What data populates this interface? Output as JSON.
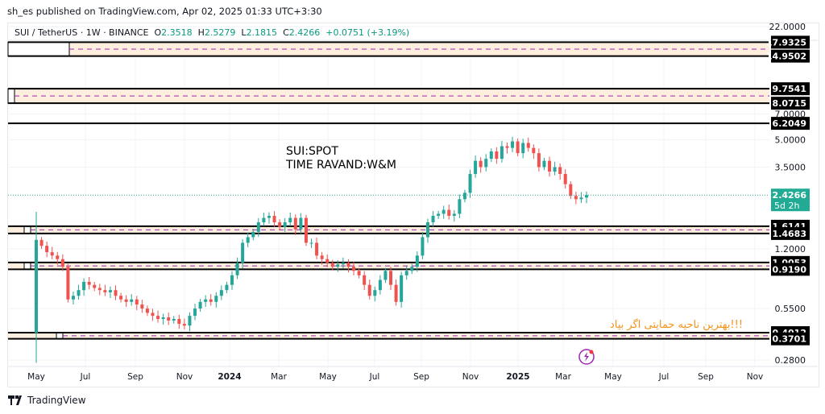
{
  "publisher_line": "sh_es published on TradingView.com, Apr 02, 2025 01:33 UTC+3:30",
  "legend": {
    "symbol": "SUI / TetherUS · 1W · BINANCE",
    "o_label": "O",
    "o": "2.3518",
    "h_label": "H",
    "h": "2.5279",
    "l_label": "L",
    "l": "2.1815",
    "c_label": "C",
    "c": "2.4266",
    "change": "+0.0751 (+3.19%)"
  },
  "colors": {
    "up": "#26a69a",
    "down": "#ef5350",
    "zone_fill": "#fdeedd",
    "zone_mid": "#9c27b0",
    "note": "#f7931a",
    "last_price": "#22ab94"
  },
  "annotations": {
    "line1": "SUI:SPOT",
    "line2": "TIME RAVAND:W&M",
    "persian": "!!!بهترین ناحیه حمایتی اگر بیاد"
  },
  "chart_data": {
    "type": "candlestick",
    "scale": "log",
    "ylim": [
      0.28,
      22
    ],
    "y_ticks": [
      "22.0000",
      "7.0000",
      "5.0000",
      "3.5000",
      "1.2000",
      "0.5500",
      "0.2800"
    ],
    "x_ticks": [
      "May",
      "Jul",
      "Sep",
      "Nov",
      "2024",
      "Mar",
      "May",
      "Jul",
      "Sep",
      "Nov",
      "2025",
      "Mar",
      "May",
      "Jul",
      "Sep",
      "Nov"
    ],
    "first_candle": {
      "o": 0.4,
      "h": 1.95,
      "l": 0.27,
      "c": 1.35
    },
    "closes": [
      1.25,
      1.15,
      1.1,
      1.05,
      0.95,
      0.62,
      0.65,
      0.7,
      0.78,
      0.75,
      0.72,
      0.7,
      0.68,
      0.7,
      0.65,
      0.62,
      0.6,
      0.62,
      0.58,
      0.55,
      0.52,
      0.5,
      0.48,
      0.49,
      0.47,
      0.48,
      0.45,
      0.44,
      0.5,
      0.55,
      0.6,
      0.62,
      0.6,
      0.65,
      0.7,
      0.75,
      0.85,
      1.0,
      1.3,
      1.4,
      1.5,
      1.7,
      1.8,
      1.85,
      1.7,
      1.6,
      1.7,
      1.8,
      1.55,
      1.8,
      1.3,
      1.3,
      1.1,
      1.05,
      1.0,
      0.95,
      0.98,
      1.0,
      0.95,
      0.9,
      0.85,
      0.75,
      0.65,
      0.7,
      0.8,
      0.9,
      0.75,
      0.6,
      0.85,
      0.9,
      0.95,
      1.1,
      1.4,
      1.7,
      1.85,
      1.9,
      2.0,
      1.85,
      1.9,
      2.3,
      2.5,
      3.2,
      3.8,
      3.5,
      3.9,
      4.3,
      3.9,
      4.6,
      4.5,
      4.9,
      4.2,
      4.8,
      4.5,
      4.2,
      3.5,
      3.8,
      3.3,
      3.5,
      3.2,
      2.8,
      2.4,
      2.3,
      2.35,
      2.4266
    ],
    "zones": [
      {
        "top": "17.9325",
        "bottom": "14.9502"
      },
      {
        "top": "9.7541",
        "bottom": "8.0715"
      },
      {
        "single": "6.2049"
      },
      {
        "top": "1.6141",
        "bottom": "1.4683"
      },
      {
        "top": "1.0053",
        "bottom": "0.9190"
      },
      {
        "top": "0.4012",
        "bottom": "0.3701"
      }
    ],
    "last_price": "2.4266",
    "countdown": "5d 2h"
  },
  "brand": "TradingView"
}
